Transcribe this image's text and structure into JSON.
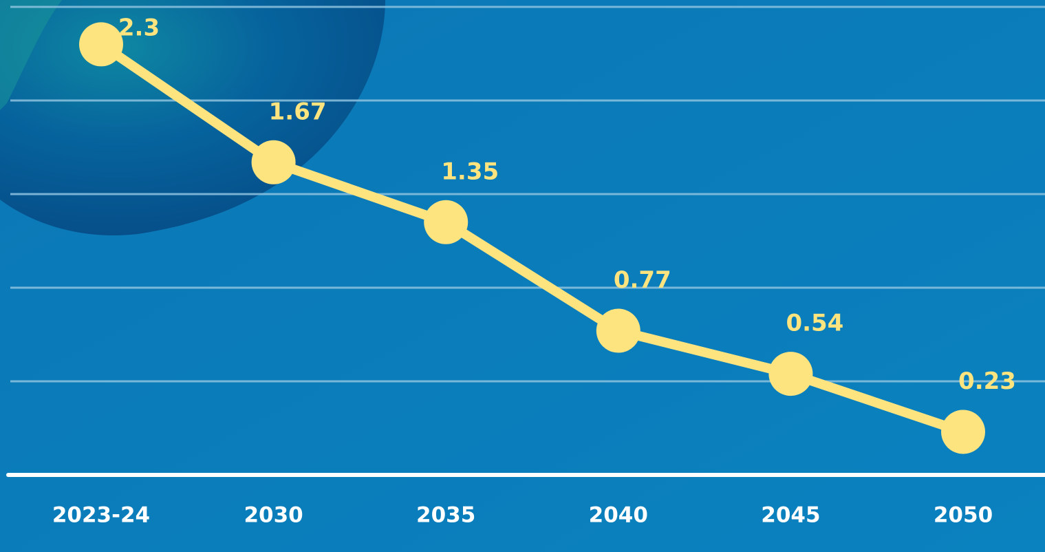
{
  "chart_data": {
    "type": "line",
    "categories": [
      "2023-24",
      "2030",
      "2035",
      "2040",
      "2045",
      "2050"
    ],
    "series": [
      {
        "color": "#fde47f",
        "values": [
          2.3,
          1.67,
          1.35,
          0.77,
          0.54,
          0.23
        ]
      }
    ],
    "ylim": [
      0,
      2.5
    ],
    "yticks": [
      0.5,
      1,
      1.5,
      2,
      2.5
    ],
    "grid": true
  }
}
